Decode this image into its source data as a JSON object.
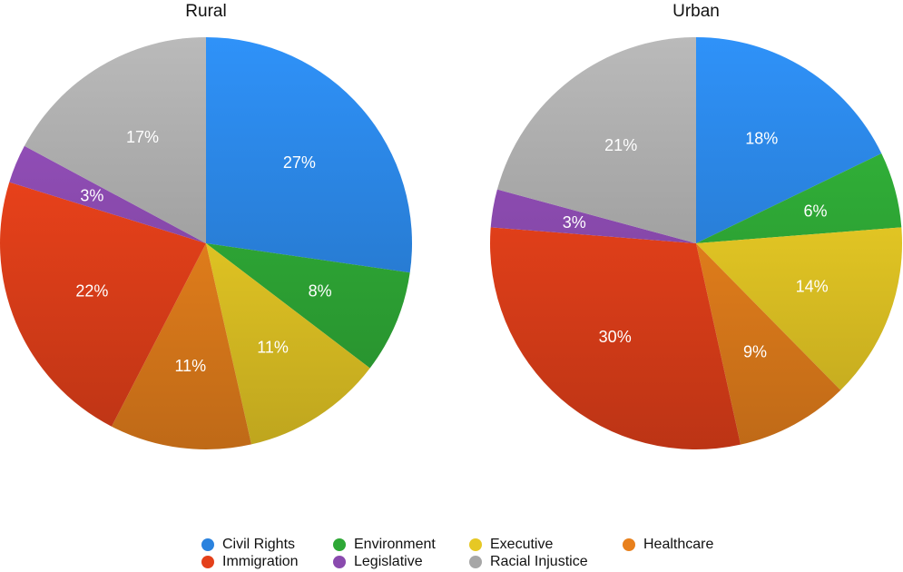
{
  "colors": {
    "Civil Rights": "#2a82de",
    "Environment": "#2ea836",
    "Executive": "#e6c824",
    "Healthcare": "#e8801c",
    "Immigration": "#e4401a",
    "Legislative": "#8a4aae",
    "Racial Injustice": "#a6a6a6"
  },
  "chart_data": [
    {
      "type": "pie",
      "title": "Rural",
      "categories": [
        "Civil Rights",
        "Environment",
        "Executive",
        "Healthcare",
        "Immigration",
        "Legislative",
        "Racial Injustice"
      ],
      "values": [
        27,
        8,
        11,
        11,
        22,
        3,
        17
      ],
      "labels": [
        "27%",
        "8%",
        "11%",
        "11%",
        "22%",
        "3%",
        "17%"
      ]
    },
    {
      "type": "pie",
      "title": "Urban",
      "categories": [
        "Civil Rights",
        "Environment",
        "Executive",
        "Healthcare",
        "Immigration",
        "Legislative",
        "Racial Injustice"
      ],
      "values": [
        18,
        6,
        14,
        9,
        30,
        3,
        21
      ],
      "labels": [
        "18%",
        "6%",
        "14%",
        "9%",
        "30%",
        "3%",
        "21%"
      ]
    }
  ],
  "legend": {
    "items": [
      "Civil Rights",
      "Environment",
      "Executive",
      "Healthcare",
      "Immigration",
      "Legislative",
      "Racial Injustice"
    ]
  }
}
